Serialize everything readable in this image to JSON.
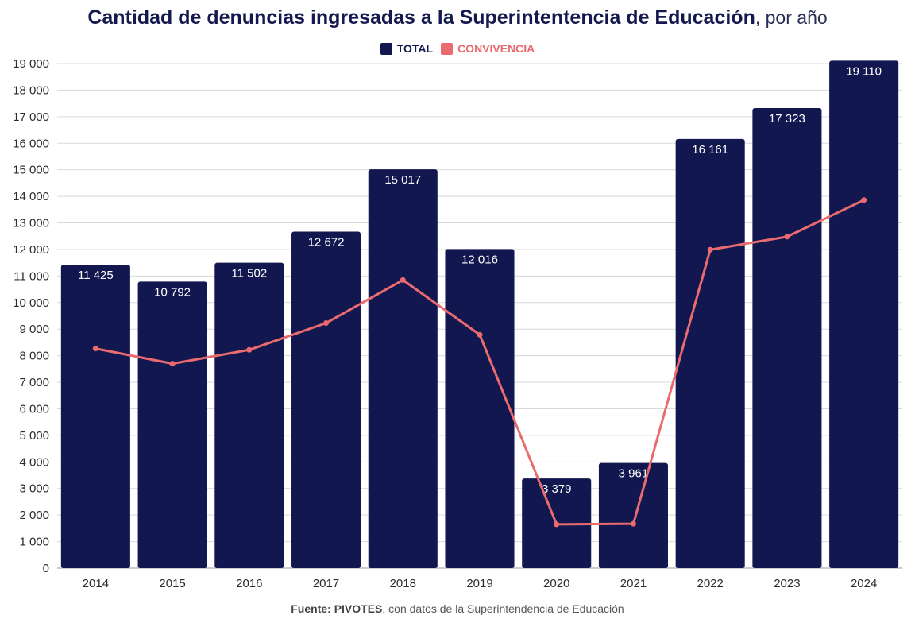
{
  "title": {
    "bold": "Cantidad de denuncias ingresadas a la Superintentencia de Educación",
    "light": ", por año"
  },
  "colors": {
    "total": "#12184f",
    "convivencia": "#ea6b6f",
    "grid": "#d9d9d9",
    "axis_text": "#2b2b2b"
  },
  "source": {
    "label": "Fuente:",
    "name": "PIVOTES",
    "rest": ", con datos de la Superintendencia de Educación"
  },
  "chart_data": {
    "type": "bar",
    "title": "Cantidad de denuncias ingresadas a la Superintentencia de Educación, por año",
    "categories": [
      "2014",
      "2015",
      "2016",
      "2017",
      "2018",
      "2019",
      "2020",
      "2021",
      "2022",
      "2023",
      "2024"
    ],
    "ylim": [
      0,
      19000
    ],
    "yticks": [
      0,
      1000,
      2000,
      3000,
      4000,
      5000,
      6000,
      7000,
      8000,
      9000,
      10000,
      11000,
      12000,
      13000,
      14000,
      15000,
      16000,
      17000,
      18000,
      19000
    ],
    "ytick_labels": [
      "0",
      "1 000",
      "2 000",
      "3 000",
      "4 000",
      "5 000",
      "6 000",
      "7 000",
      "8 000",
      "9 000",
      "10 000",
      "11 000",
      "12 000",
      "13 000",
      "14 000",
      "15 000",
      "16 000",
      "17 000",
      "18 000",
      "19 000"
    ],
    "grid": true,
    "legend_position": "top-center",
    "series": [
      {
        "name": "TOTAL",
        "kind": "bar",
        "values": [
          11425,
          10792,
          11502,
          12672,
          15017,
          12016,
          3379,
          3961,
          16161,
          17323,
          19110
        ],
        "labels": [
          "11 425",
          "10 792",
          "11 502",
          "12 672",
          "15 017",
          "12 016",
          "3 379",
          "3 961",
          "16 161",
          "17 323",
          "19 110"
        ]
      },
      {
        "name": "CONVIVENCIA",
        "kind": "line",
        "values": [
          8270,
          7700,
          8220,
          9230,
          10850,
          8790,
          1650,
          1670,
          11990,
          12480,
          13860
        ]
      }
    ]
  }
}
